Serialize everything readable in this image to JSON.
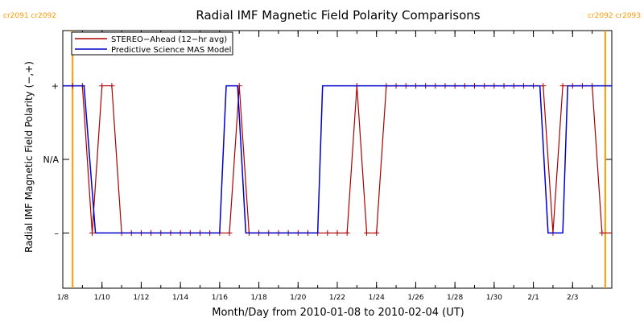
{
  "chart_data": {
    "type": "line",
    "title": "Radial IMF Magnetic Field Polarity Comparisons",
    "xlabel": "Month/Day from 2010-01-08 to 2010-02-04 (UT)",
    "ylabel": "Radial IMF Magnetic Field Polarity (−,+)",
    "xlim": [
      "2010-01-08",
      "2010-02-04"
    ],
    "ylim": [
      -1.75,
      1.75
    ],
    "y_ticks": [
      {
        "value": 1,
        "label": "+"
      },
      {
        "value": 0,
        "label": "N/A"
      },
      {
        "value": -1,
        "label": "–"
      }
    ],
    "x_ticks": [
      {
        "value": "2010-01-08",
        "label": "1/8"
      },
      {
        "value": "2010-01-10",
        "label": "1/10"
      },
      {
        "value": "2010-01-12",
        "label": "1/12"
      },
      {
        "value": "2010-01-14",
        "label": "1/14"
      },
      {
        "value": "2010-01-16",
        "label": "1/16"
      },
      {
        "value": "2010-01-18",
        "label": "1/18"
      },
      {
        "value": "2010-01-20",
        "label": "1/20"
      },
      {
        "value": "2010-01-22",
        "label": "1/22"
      },
      {
        "value": "2010-01-24",
        "label": "1/24"
      },
      {
        "value": "2010-01-26",
        "label": "1/26"
      },
      {
        "value": "2010-01-28",
        "label": "1/28"
      },
      {
        "value": "2010-01-30",
        "label": "1/30"
      },
      {
        "value": "2010-02-01",
        "label": "2/1"
      },
      {
        "value": "2010-02-03",
        "label": "2/3"
      }
    ],
    "legend": {
      "placement": "top-left"
    },
    "carrington_markers": [
      {
        "date": "2010-01-08 12:00",
        "labels": [
          "cr2091",
          "cr2092"
        ],
        "label_side": "left"
      },
      {
        "date": "2010-02-04 16:00",
        "labels": [
          "cr2092",
          "cr2093"
        ],
        "label_side": "right"
      }
    ],
    "series": [
      {
        "name": "STEREO−Ahead (12−hr avg)",
        "color": "#aa0000",
        "marker": "plus",
        "points": [
          {
            "date": "2010-01-08 00:00",
            "value": 1
          },
          {
            "date": "2010-01-08 12:00",
            "value": 1
          },
          {
            "date": "2010-01-09 00:00",
            "value": 1
          },
          {
            "date": "2010-01-09 12:00",
            "value": -1
          },
          {
            "date": "2010-01-10 00:00",
            "value": 1
          },
          {
            "date": "2010-01-10 12:00",
            "value": 1
          },
          {
            "date": "2010-01-11 00:00",
            "value": -1
          },
          {
            "date": "2010-01-11 12:00",
            "value": -1
          },
          {
            "date": "2010-01-12 00:00",
            "value": -1
          },
          {
            "date": "2010-01-12 12:00",
            "value": -1
          },
          {
            "date": "2010-01-13 00:00",
            "value": -1
          },
          {
            "date": "2010-01-13 12:00",
            "value": -1
          },
          {
            "date": "2010-01-14 00:00",
            "value": -1
          },
          {
            "date": "2010-01-14 12:00",
            "value": -1
          },
          {
            "date": "2010-01-15 00:00",
            "value": -1
          },
          {
            "date": "2010-01-15 12:00",
            "value": -1
          },
          {
            "date": "2010-01-16 00:00",
            "value": -1
          },
          {
            "date": "2010-01-16 12:00",
            "value": -1
          },
          {
            "date": "2010-01-17 00:00",
            "value": 1
          },
          {
            "date": "2010-01-17 12:00",
            "value": -1
          },
          {
            "date": "2010-01-18 00:00",
            "value": -1
          },
          {
            "date": "2010-01-18 12:00",
            "value": -1
          },
          {
            "date": "2010-01-19 00:00",
            "value": -1
          },
          {
            "date": "2010-01-19 12:00",
            "value": -1
          },
          {
            "date": "2010-01-20 00:00",
            "value": -1
          },
          {
            "date": "2010-01-20 12:00",
            "value": -1
          },
          {
            "date": "2010-01-21 00:00",
            "value": -1
          },
          {
            "date": "2010-01-21 12:00",
            "value": -1
          },
          {
            "date": "2010-01-22 00:00",
            "value": -1
          },
          {
            "date": "2010-01-22 12:00",
            "value": -1
          },
          {
            "date": "2010-01-23 00:00",
            "value": 1
          },
          {
            "date": "2010-01-23 12:00",
            "value": -1
          },
          {
            "date": "2010-01-24 00:00",
            "value": -1
          },
          {
            "date": "2010-01-24 12:00",
            "value": 1
          },
          {
            "date": "2010-01-25 00:00",
            "value": 1
          },
          {
            "date": "2010-01-25 12:00",
            "value": 1
          },
          {
            "date": "2010-01-26 00:00",
            "value": 1
          },
          {
            "date": "2010-01-26 12:00",
            "value": 1
          },
          {
            "date": "2010-01-27 00:00",
            "value": 1
          },
          {
            "date": "2010-01-27 12:00",
            "value": 1
          },
          {
            "date": "2010-01-28 00:00",
            "value": 1
          },
          {
            "date": "2010-01-28 12:00",
            "value": 1
          },
          {
            "date": "2010-01-29 00:00",
            "value": 1
          },
          {
            "date": "2010-01-29 12:00",
            "value": 1
          },
          {
            "date": "2010-01-30 00:00",
            "value": 1
          },
          {
            "date": "2010-01-30 12:00",
            "value": 1
          },
          {
            "date": "2010-01-31 00:00",
            "value": 1
          },
          {
            "date": "2010-01-31 12:00",
            "value": 1
          },
          {
            "date": "2010-02-01 00:00",
            "value": 1
          },
          {
            "date": "2010-02-01 12:00",
            "value": 1
          },
          {
            "date": "2010-02-02 00:00",
            "value": -1
          },
          {
            "date": "2010-02-02 12:00",
            "value": 1
          },
          {
            "date": "2010-02-03 00:00",
            "value": 1
          },
          {
            "date": "2010-02-03 12:00",
            "value": 1
          },
          {
            "date": "2010-02-04 00:00",
            "value": 1
          },
          {
            "date": "2010-02-04 12:00",
            "value": -1
          },
          {
            "date": "2010-02-05 00:00",
            "value": -1
          }
        ]
      },
      {
        "name": "Predictive Science MAS Model",
        "color": "#0000cc",
        "points": [
          {
            "date": "2010-01-08 00:00",
            "value": 1
          },
          {
            "date": "2010-01-09 02:00",
            "value": 1
          },
          {
            "date": "2010-01-09 16:00",
            "value": -1
          },
          {
            "date": "2010-01-16 00:00",
            "value": -1
          },
          {
            "date": "2010-01-16 08:00",
            "value": 1
          },
          {
            "date": "2010-01-16 22:00",
            "value": 1
          },
          {
            "date": "2010-01-17 08:00",
            "value": -1
          },
          {
            "date": "2010-01-21 00:00",
            "value": -1
          },
          {
            "date": "2010-01-21 06:00",
            "value": 1
          },
          {
            "date": "2010-02-01 08:00",
            "value": 1
          },
          {
            "date": "2010-02-01 18:00",
            "value": -1
          },
          {
            "date": "2010-02-02 12:00",
            "value": -1
          },
          {
            "date": "2010-02-02 18:00",
            "value": 1
          },
          {
            "date": "2010-02-05 00:00",
            "value": 1
          }
        ]
      }
    ]
  }
}
